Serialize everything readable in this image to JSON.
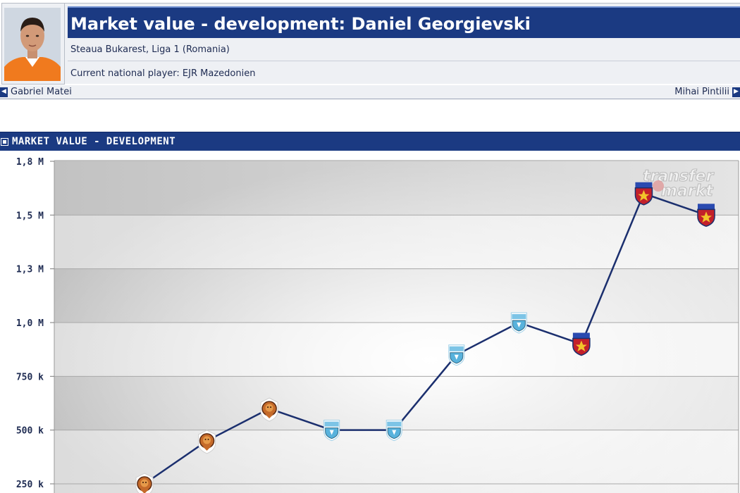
{
  "header": {
    "title": "Market value - development: Daniel Georgievski",
    "club_line": "Steaua Bukarest, Liga 1 (Romania)",
    "national_line": "Current national player: EJR Mazedonien"
  },
  "navigation": {
    "prev_label": "Gabriel Matei",
    "next_label": "Mihai Pintilii"
  },
  "section": {
    "title": "MARKET VALUE - DEVELOPMENT"
  },
  "watermark": {
    "line1": "transfer",
    "line2": "markt"
  },
  "colors": {
    "header_blue": "#1b3a82",
    "line": "#1b2f6e",
    "band_dark": "#c7c7c7"
  },
  "chart_data": {
    "type": "line",
    "y_tick_labels": [
      "1,8 M",
      "1,5 M",
      "1,3 M",
      "1,0 M",
      "750 k",
      "500 k",
      "250 k"
    ],
    "y_tick_values": [
      1750000,
      1500000,
      1250000,
      1000000,
      750000,
      500000,
      250000
    ],
    "ylim": [
      250000,
      1750000
    ],
    "grid": true,
    "points": [
      {
        "value": 250000,
        "club_icon": "orange-lion-crest-icon"
      },
      {
        "value": 450000,
        "club_icon": "orange-lion-crest-icon"
      },
      {
        "value": 600000,
        "club_icon": "orange-lion-crest-icon"
      },
      {
        "value": 500000,
        "club_icon": "light-blue-crest-icon"
      },
      {
        "value": 500000,
        "club_icon": "light-blue-crest-icon"
      },
      {
        "value": 850000,
        "club_icon": "light-blue-crest-icon"
      },
      {
        "value": 1000000,
        "club_icon": "light-blue-crest-icon"
      },
      {
        "value": 900000,
        "club_icon": "steaua-star-crest-icon"
      },
      {
        "value": 1600000,
        "club_icon": "steaua-star-crest-icon"
      },
      {
        "value": 1500000,
        "club_icon": "steaua-star-crest-icon"
      }
    ]
  }
}
